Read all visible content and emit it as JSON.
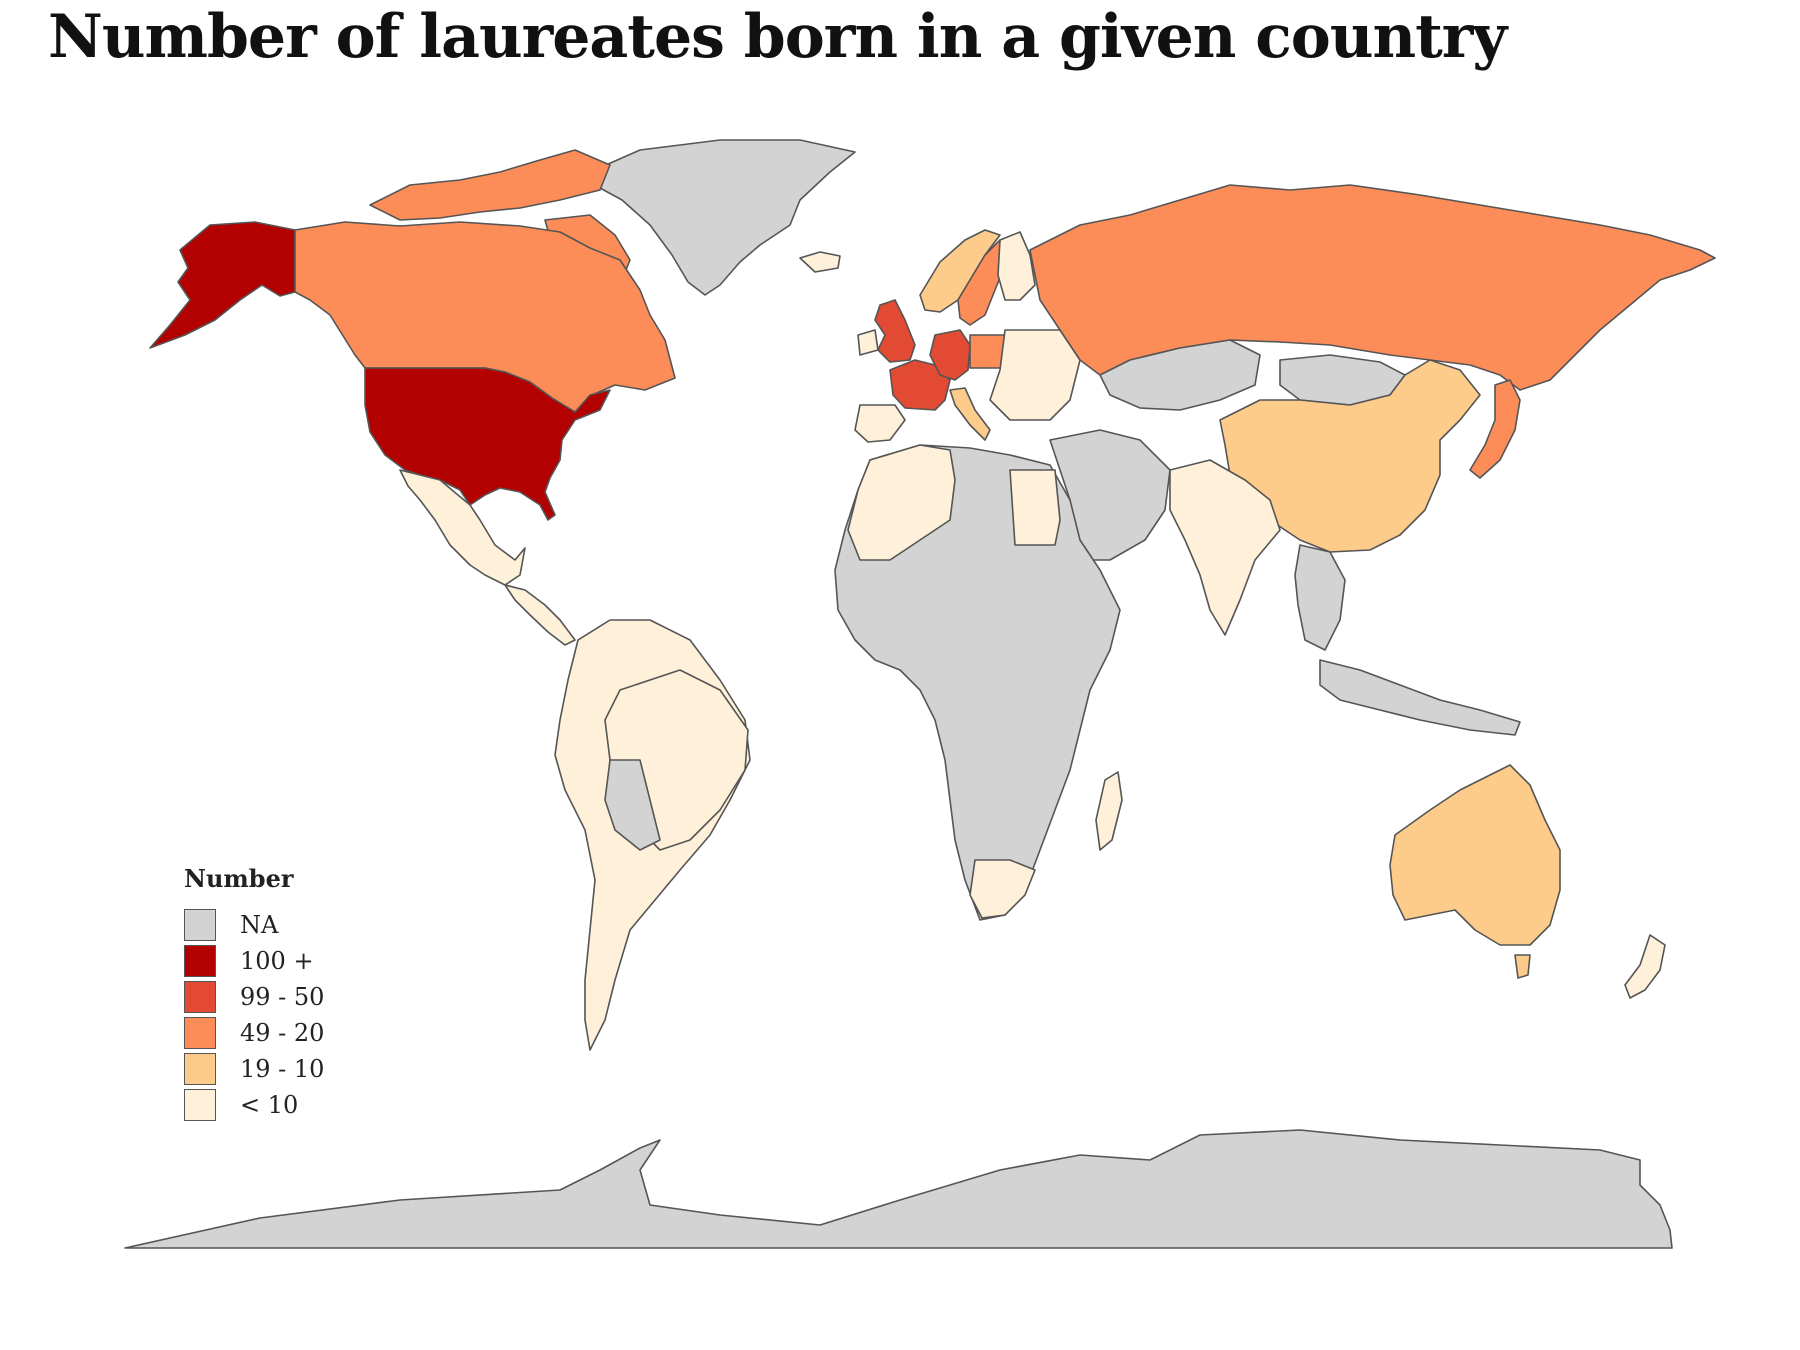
{
  "title": "Number of laureates born in a given country",
  "legend": {
    "title": "Number",
    "items": [
      {
        "label": "NA",
        "color": "#d3d3d3"
      },
      {
        "label": "100 +",
        "color": "#b30000"
      },
      {
        "label": "99 - 50",
        "color": "#e34a33"
      },
      {
        "label": "49 - 20",
        "color": "#fc8d59"
      },
      {
        "label": "19 - 10",
        "color": "#fdcc8a"
      },
      {
        "label": "< 10",
        "color": "#fef0d9"
      }
    ]
  },
  "map": {
    "projection": "world",
    "regions": [
      {
        "name": "united-states",
        "category": "100 +"
      },
      {
        "name": "alaska",
        "category": "100 +"
      },
      {
        "name": "united-kingdom",
        "category": "99 - 50"
      },
      {
        "name": "france",
        "category": "99 - 50"
      },
      {
        "name": "germany",
        "category": "99 - 50"
      },
      {
        "name": "canada",
        "category": "49 - 20"
      },
      {
        "name": "russia",
        "category": "49 - 20"
      },
      {
        "name": "japan",
        "category": "49 - 20"
      },
      {
        "name": "poland",
        "category": "49 - 20"
      },
      {
        "name": "sweden",
        "category": "49 - 20"
      },
      {
        "name": "china",
        "category": "19 - 10"
      },
      {
        "name": "australia",
        "category": "19 - 10"
      },
      {
        "name": "italy",
        "category": "19 - 10"
      },
      {
        "name": "norway",
        "category": "19 - 10"
      },
      {
        "name": "greenland",
        "category": "NA"
      },
      {
        "name": "antarctica",
        "category": "NA"
      }
    ]
  }
}
